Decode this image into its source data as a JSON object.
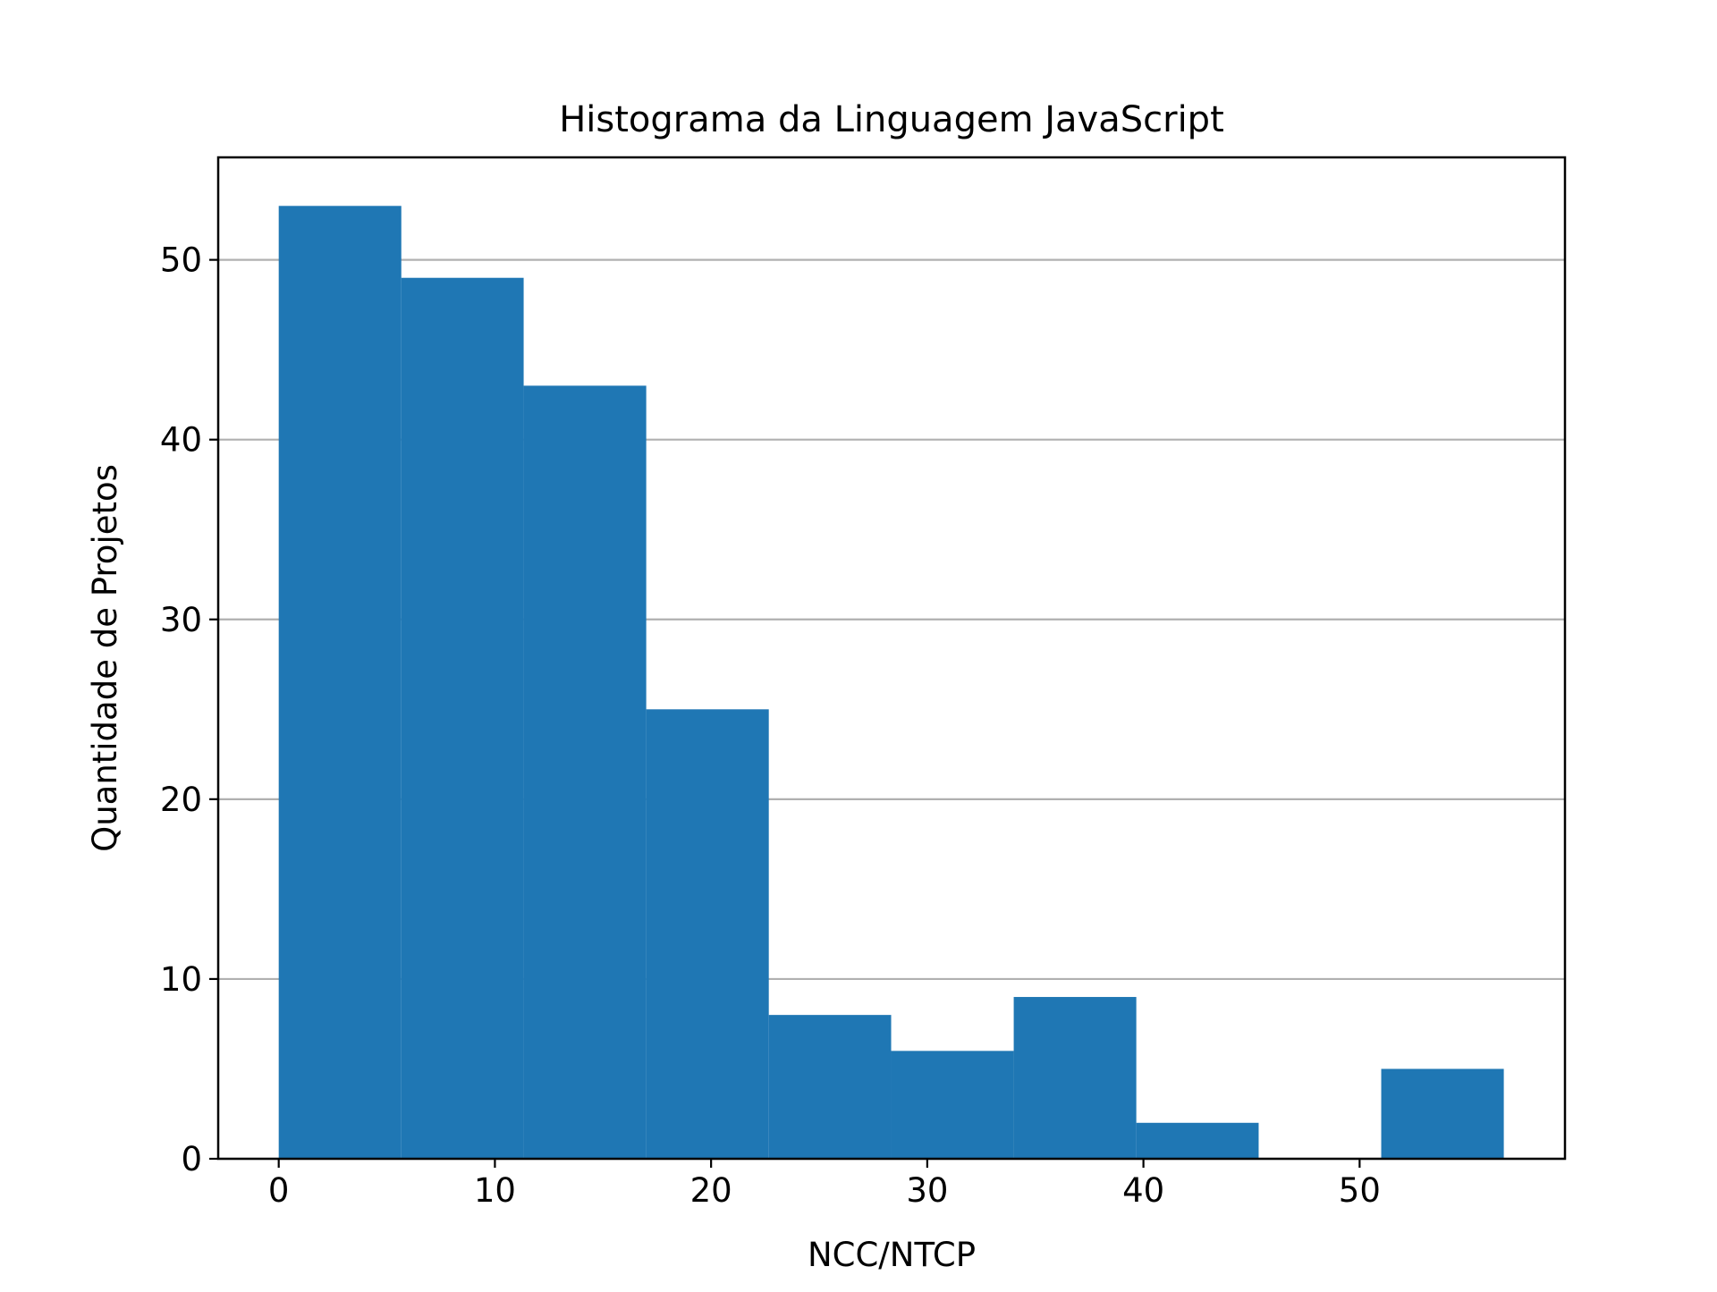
{
  "chart_data": {
    "type": "bar",
    "subtype": "histogram",
    "title": "Histograma da Linguagem JavaScript",
    "xlabel": "NCC/NTCP",
    "ylabel": "Quantidade de Projetos",
    "bins": [
      [
        0.0,
        5.67
      ],
      [
        5.67,
        11.33
      ],
      [
        11.33,
        17.0
      ],
      [
        17.0,
        22.67
      ],
      [
        22.67,
        28.33
      ],
      [
        28.33,
        34.0
      ],
      [
        34.0,
        39.67
      ],
      [
        39.67,
        45.33
      ],
      [
        45.33,
        51.0
      ],
      [
        51.0,
        56.67
      ]
    ],
    "values": [
      53,
      49,
      43,
      25,
      8,
      6,
      9,
      2,
      0,
      5
    ],
    "xlim": [
      -2.8,
      59.5
    ],
    "ylim": [
      0,
      55.7
    ],
    "xticks": [
      0,
      10,
      20,
      30,
      40,
      50
    ],
    "yticks": [
      0,
      10,
      20,
      30,
      40,
      50
    ],
    "xtick_labels": [
      "0",
      "10",
      "20",
      "30",
      "40",
      "50"
    ],
    "ytick_labels": [
      "0",
      "10",
      "20",
      "30",
      "40",
      "50"
    ],
    "grid": "y",
    "legend": "none",
    "colors": {
      "bar": "#1f77b4",
      "grid": "#b0b0b0",
      "axis": "#000000"
    }
  }
}
